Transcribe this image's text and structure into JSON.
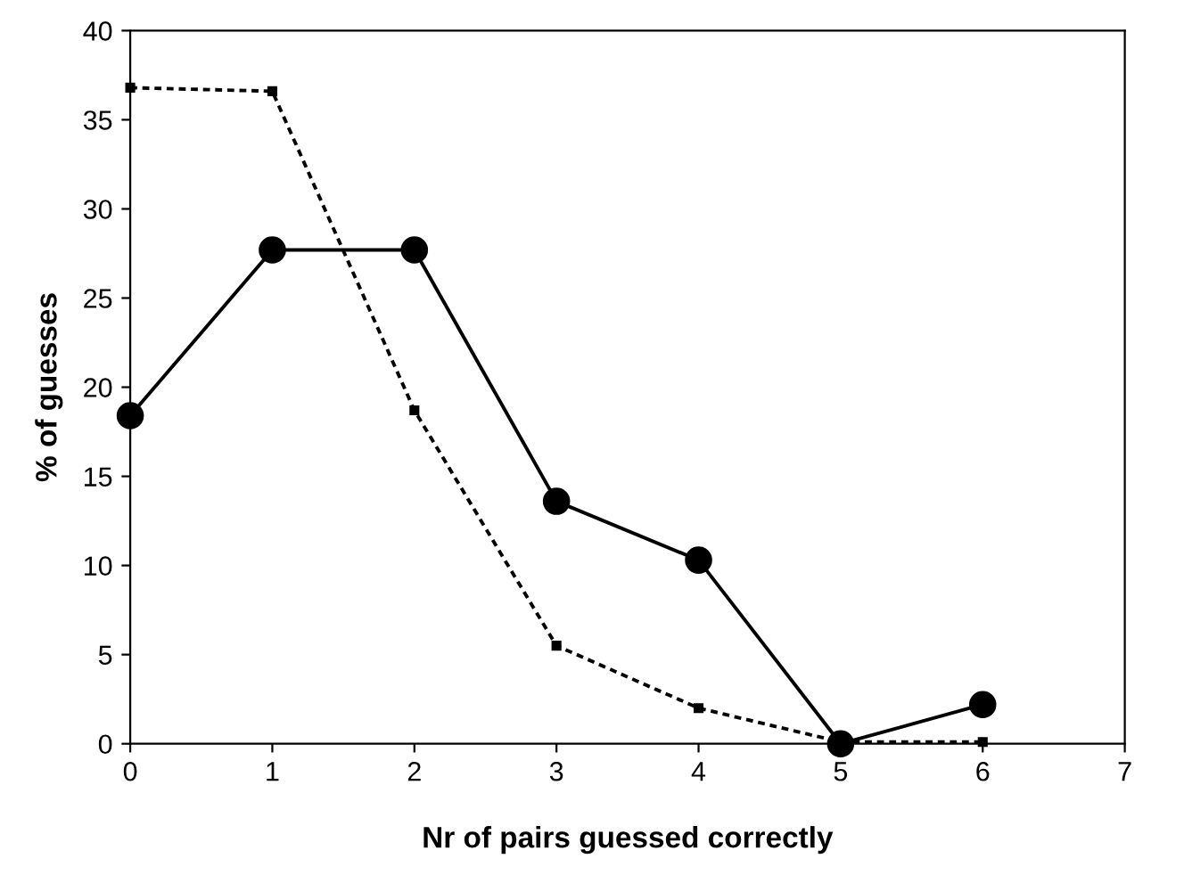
{
  "chart_data": {
    "type": "line",
    "xlabel": "Nr of pairs guessed correctly",
    "ylabel": "% of guesses",
    "x": [
      0,
      1,
      2,
      3,
      4,
      5,
      6
    ],
    "series": [
      {
        "color": "#000000",
        "marker": "circle",
        "line_style": "solid",
        "values": [
          18.4,
          27.7,
          27.7,
          13.6,
          10.3,
          0,
          2.2
        ]
      },
      {
        "color": "#000000",
        "marker": "square",
        "line_style": "dotted",
        "values": [
          36.8,
          36.6,
          18.7,
          5.5,
          2.0,
          0.1,
          0.1
        ]
      }
    ],
    "xlim": [
      0,
      7
    ],
    "xticks": [
      0,
      1,
      2,
      3,
      4,
      5,
      6,
      7
    ],
    "ylim": [
      0,
      40
    ],
    "yticks": [
      0,
      5,
      10,
      15,
      20,
      25,
      30,
      35,
      40
    ],
    "grid": false,
    "legend": false
  }
}
